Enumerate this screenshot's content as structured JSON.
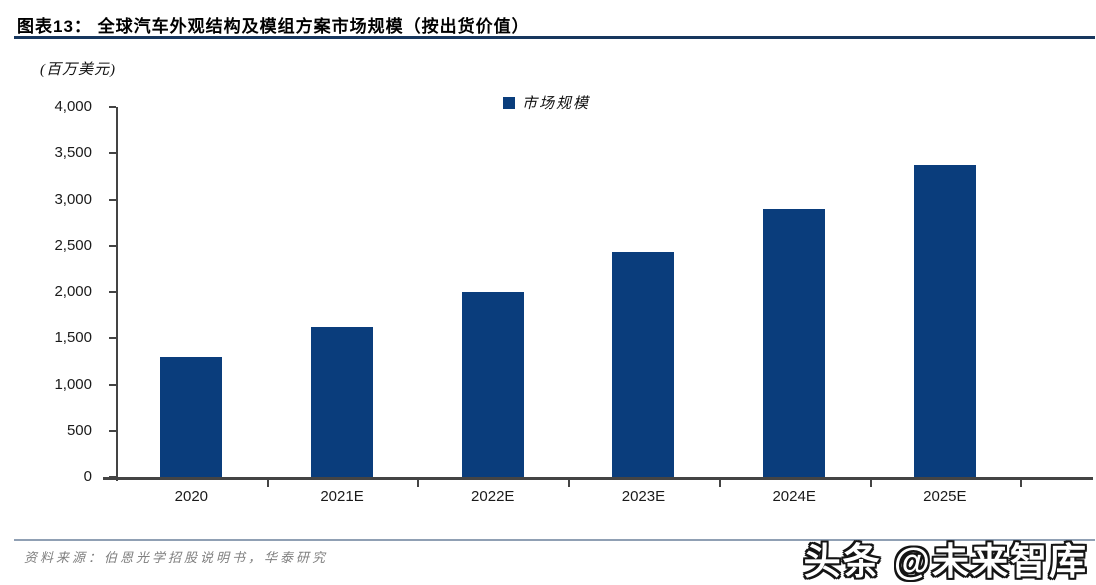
{
  "page": {
    "title": "图表13：  全球汽车外观结构及模组方案市场规模（按出货价值）",
    "source": "资料来源：伯恩光学招股说明书，华泰研究",
    "watermark": "头条 @未来智库"
  },
  "chart_data": {
    "type": "bar",
    "title": "全球汽车外观结构及模组方案市场规模（按出货价值）",
    "unit_label": "(百万美元)",
    "legend": [
      {
        "label": "市场规模",
        "color": "#0a3d7c"
      }
    ],
    "legend_position": "top-center",
    "categories": [
      "2020",
      "2021E",
      "2022E",
      "2023E",
      "2024E",
      "2025E"
    ],
    "series": [
      {
        "name": "市场规模",
        "values": [
          1300,
          1620,
          2000,
          2430,
          2900,
          3370
        ]
      }
    ],
    "ylabel": "百万美元",
    "ylim": [
      0,
      4000
    ],
    "ytick_step": 500,
    "ytick_labels": [
      "0",
      "500",
      "1,000",
      "1,500",
      "2,000",
      "2,500",
      "3,000",
      "3,500",
      "4,000"
    ],
    "grid": false,
    "bar_color": "#0a3d7c",
    "axis_color": "#595959"
  },
  "colors": {
    "bar": "#0a3d7c",
    "title_rule": "#17375e",
    "source_rule": "#90a0b4",
    "source_text": "#7f7f7f",
    "axis": "#444444",
    "tick_text": "#1a1a1a"
  }
}
